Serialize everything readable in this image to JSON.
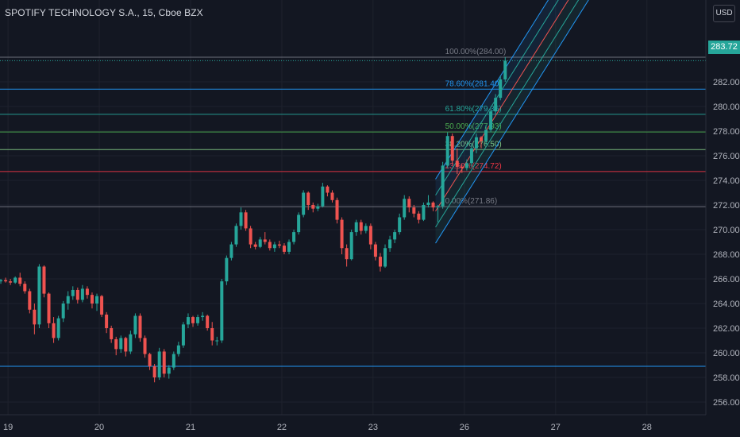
{
  "header": {
    "title": "SPOTIFY TECHNOLOGY S.A., 15, Cboe BZX",
    "currency": "USD",
    "last_price_tag": "283.72"
  },
  "colors": {
    "up": "#26a69a",
    "down": "#ef5350",
    "bg": "#131722",
    "axis_text": "#b2b5be"
  },
  "chart_data": {
    "type": "candlestick",
    "ylim": [
      255,
      287
    ],
    "y_ticks": [
      "256.00",
      "258.00",
      "260.00",
      "262.00",
      "264.00",
      "266.00",
      "268.00",
      "270.00",
      "272.00",
      "274.00",
      "276.00",
      "278.00",
      "280.00",
      "282.00"
    ],
    "y_tick_values": [
      256,
      258,
      260,
      262,
      264,
      266,
      268,
      270,
      272,
      274,
      276,
      278,
      280,
      282
    ],
    "x_ticks": [
      "19",
      "20",
      "21",
      "22",
      "23",
      "26",
      "27",
      "28"
    ],
    "x_tick_index": [
      2,
      21,
      40,
      59,
      78,
      97,
      116,
      135
    ],
    "x_count": 142,
    "last_price": 283.72,
    "fib_levels": [
      {
        "label": "100.00%(284.00)",
        "value": 284.0,
        "color": "#787b86"
      },
      {
        "label": "78.60%(281.40)",
        "value": 281.4,
        "color": "#2196f3"
      },
      {
        "label": "61.80%(279.36)",
        "value": 279.36,
        "color": "#26a69a"
      },
      {
        "label": "50.00%(277.93)",
        "value": 277.93,
        "color": "#4caf50"
      },
      {
        "label": "38.20%(276.50)",
        "value": 276.5,
        "color": "#81c784"
      },
      {
        "label": "23.60%(274.72)",
        "value": 274.72,
        "color": "#f23645"
      },
      {
        "label": "0.00%(271.86)",
        "value": 271.86,
        "color": "#787b86"
      }
    ],
    "hline": {
      "value": 258.9,
      "color": "#2196f3"
    },
    "candles": [
      [
        265.8,
        266.0,
        265.6,
        265.9
      ],
      [
        265.9,
        266.1,
        265.7,
        265.8
      ],
      [
        265.8,
        266.0,
        265.5,
        265.7
      ],
      [
        265.7,
        266.2,
        265.6,
        266.1
      ],
      [
        266.1,
        266.5,
        265.4,
        265.6
      ],
      [
        265.6,
        265.8,
        264.8,
        265.0
      ],
      [
        265.0,
        265.2,
        263.2,
        263.5
      ],
      [
        263.5,
        264.0,
        261.5,
        262.3
      ],
      [
        262.3,
        267.2,
        262.0,
        267.0
      ],
      [
        267.0,
        267.1,
        264.5,
        264.8
      ],
      [
        264.8,
        264.9,
        262.0,
        262.4
      ],
      [
        262.4,
        262.9,
        260.8,
        261.2
      ],
      [
        261.2,
        263.0,
        261.0,
        262.8
      ],
      [
        262.8,
        264.2,
        262.5,
        264.0
      ],
      [
        264.0,
        265.0,
        263.5,
        264.6
      ],
      [
        264.6,
        265.4,
        264.3,
        265.1
      ],
      [
        265.1,
        265.3,
        264.0,
        264.3
      ],
      [
        264.3,
        265.5,
        264.1,
        265.2
      ],
      [
        265.2,
        265.4,
        264.4,
        264.7
      ],
      [
        264.7,
        264.9,
        263.6,
        264.0
      ],
      [
        264.0,
        264.8,
        263.4,
        264.6
      ],
      [
        264.6,
        264.7,
        262.9,
        263.1
      ],
      [
        263.1,
        263.3,
        261.6,
        262.0
      ],
      [
        262.0,
        262.2,
        260.8,
        261.1
      ],
      [
        261.1,
        261.3,
        259.8,
        260.3
      ],
      [
        260.3,
        261.4,
        260.0,
        261.2
      ],
      [
        261.2,
        261.3,
        259.7,
        260.1
      ],
      [
        260.1,
        261.8,
        259.9,
        261.5
      ],
      [
        261.5,
        263.2,
        261.2,
        263.0
      ],
      [
        263.0,
        263.2,
        260.9,
        261.2
      ],
      [
        261.2,
        261.4,
        259.6,
        259.9
      ],
      [
        259.9,
        260.0,
        258.6,
        258.9
      ],
      [
        258.9,
        259.1,
        257.6,
        258.0
      ],
      [
        258.0,
        260.4,
        257.8,
        260.1
      ],
      [
        260.1,
        260.3,
        258.0,
        258.3
      ],
      [
        258.3,
        259.0,
        257.9,
        258.8
      ],
      [
        258.8,
        260.1,
        258.6,
        259.9
      ],
      [
        259.9,
        260.9,
        259.7,
        260.6
      ],
      [
        260.6,
        262.5,
        260.4,
        262.3
      ],
      [
        262.3,
        263.2,
        262.0,
        262.9
      ],
      [
        262.9,
        263.0,
        262.1,
        262.4
      ],
      [
        262.4,
        263.1,
        262.2,
        262.9
      ],
      [
        262.9,
        263.3,
        262.6,
        263.0
      ],
      [
        263.0,
        263.1,
        261.8,
        262.0
      ],
      [
        262.0,
        262.5,
        260.6,
        261.0
      ],
      [
        261.0,
        261.3,
        260.6,
        261.0
      ],
      [
        261.0,
        266.0,
        260.8,
        265.8
      ],
      [
        265.8,
        267.9,
        265.5,
        267.7
      ],
      [
        267.7,
        269.0,
        267.5,
        268.8
      ],
      [
        268.8,
        270.5,
        268.6,
        270.3
      ],
      [
        270.3,
        271.8,
        270.0,
        271.4
      ],
      [
        271.4,
        271.6,
        269.9,
        270.1
      ],
      [
        270.1,
        270.3,
        268.5,
        268.8
      ],
      [
        268.8,
        269.0,
        268.4,
        268.6
      ],
      [
        268.6,
        269.4,
        268.5,
        269.2
      ],
      [
        269.2,
        269.8,
        268.8,
        269.0
      ],
      [
        269.0,
        269.2,
        268.3,
        268.5
      ],
      [
        268.5,
        269.0,
        268.2,
        268.8
      ],
      [
        268.8,
        269.1,
        268.5,
        268.7
      ],
      [
        268.7,
        268.9,
        268.0,
        268.2
      ],
      [
        268.2,
        269.2,
        268.0,
        269.0
      ],
      [
        269.0,
        270.0,
        268.8,
        269.8
      ],
      [
        269.8,
        271.4,
        269.6,
        271.2
      ],
      [
        271.2,
        273.2,
        271.0,
        273.0
      ],
      [
        273.0,
        273.1,
        271.6,
        272.0
      ],
      [
        272.0,
        272.2,
        271.4,
        271.7
      ],
      [
        271.7,
        272.1,
        271.5,
        271.9
      ],
      [
        271.9,
        273.8,
        271.8,
        273.5
      ],
      [
        273.5,
        273.6,
        272.7,
        273.0
      ],
      [
        273.0,
        273.2,
        272.2,
        272.4
      ],
      [
        272.4,
        272.6,
        270.5,
        270.8
      ],
      [
        270.8,
        271.0,
        268.0,
        268.5
      ],
      [
        268.5,
        268.8,
        267.0,
        267.6
      ],
      [
        267.6,
        270.0,
        267.5,
        269.8
      ],
      [
        269.8,
        270.8,
        269.5,
        270.6
      ],
      [
        270.6,
        270.8,
        269.6,
        269.9
      ],
      [
        269.9,
        270.5,
        269.7,
        270.3
      ],
      [
        270.3,
        270.5,
        268.4,
        268.8
      ],
      [
        268.8,
        269.0,
        267.5,
        267.8
      ],
      [
        267.8,
        268.1,
        266.6,
        267.0
      ],
      [
        267.0,
        268.8,
        266.9,
        268.5
      ],
      [
        268.5,
        269.5,
        268.2,
        269.2
      ],
      [
        269.2,
        270.0,
        268.9,
        269.8
      ],
      [
        269.8,
        271.3,
        269.6,
        271.0
      ],
      [
        271.0,
        272.8,
        270.8,
        272.5
      ],
      [
        272.5,
        272.7,
        271.4,
        271.8
      ],
      [
        271.8,
        272.0,
        271.0,
        271.3
      ],
      [
        271.3,
        271.5,
        270.5,
        270.8
      ],
      [
        270.8,
        272.2,
        270.7,
        272.0
      ],
      [
        272.0,
        272.8,
        271.8,
        272.2
      ],
      [
        272.2,
        272.3,
        271.5,
        271.8
      ],
      [
        271.8,
        272.0,
        270.6,
        271.9
      ],
      [
        271.9,
        275.5,
        271.7,
        275.2
      ],
      [
        275.2,
        277.9,
        275.0,
        277.6
      ],
      [
        277.6,
        277.8,
        275.3,
        275.6
      ],
      [
        275.6,
        276.6,
        274.5,
        275.1
      ],
      [
        275.1,
        275.3,
        274.6,
        275.0
      ],
      [
        275.0,
        275.7,
        274.8,
        275.4
      ],
      [
        275.4,
        277.0,
        275.1,
        276.6
      ],
      [
        276.6,
        277.8,
        276.2,
        277.5
      ],
      [
        277.5,
        277.6,
        276.6,
        277.2
      ],
      [
        277.2,
        278.5,
        276.9,
        278.1
      ],
      [
        278.1,
        279.8,
        277.9,
        279.6
      ],
      [
        279.6,
        281.0,
        279.3,
        280.7
      ],
      [
        280.7,
        282.5,
        280.5,
        282.2
      ],
      [
        282.2,
        284.0,
        282.0,
        283.72
      ]
    ]
  }
}
